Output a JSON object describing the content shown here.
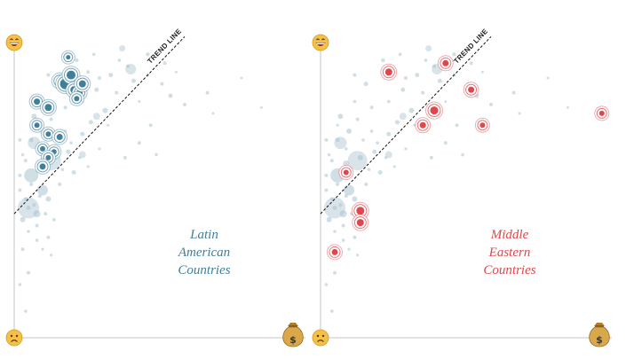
{
  "panels": [
    {
      "title_lines": [
        "Latin",
        "American",
        "Countries"
      ],
      "trend_label": "TREND LINE"
    },
    {
      "title_lines": [
        "Middle",
        "Eastern",
        "Countries"
      ],
      "trend_label": "TREND LINE"
    }
  ],
  "icons": {
    "y_top": "grinning-face-icon",
    "y_bottom": "frowning-face-icon",
    "x_right": "money-bag-icon",
    "money_symbol": "$"
  },
  "colors": {
    "latin": "#3f7f99",
    "middle_east": "#e0474c",
    "background_points": "#a9c3d1",
    "axis": "#d9d9d9",
    "trend": "#111111",
    "emoji_face": "#f5c046",
    "money_bag": "#d8a84a"
  },
  "chart_data": [
    {
      "type": "scatter",
      "title": "Latin American Countries",
      "xlabel": "",
      "ylabel": "",
      "xlim": [
        0,
        1
      ],
      "ylim": [
        0,
        1
      ],
      "trend_line": {
        "x": [
          0.0,
          0.6
        ],
        "y": [
          0.42,
          1.02
        ]
      },
      "series": [
        {
          "name": "Background",
          "points": [
            [
              0.05,
              0.44,
              2.5
            ],
            [
              0.08,
              0.42,
              4
            ],
            [
              0.1,
              0.5,
              6
            ],
            [
              0.03,
              0.4,
              3
            ],
            [
              0.12,
              0.47,
              3
            ],
            [
              0.16,
              0.52,
              2
            ],
            [
              0.21,
              0.56,
              2.5
            ],
            [
              0.09,
              0.59,
              3.5
            ],
            [
              0.14,
              0.61,
              3
            ],
            [
              0.19,
              0.63,
              2.5
            ],
            [
              0.06,
              0.67,
              2.5
            ],
            [
              0.1,
              0.7,
              3
            ],
            [
              0.02,
              0.55,
              2
            ],
            [
              0.04,
              0.6,
              2
            ],
            [
              0.08,
              0.38,
              2
            ],
            [
              0.12,
              0.34,
              2
            ],
            [
              0.03,
              0.3,
              2
            ],
            [
              0.05,
              0.22,
              2
            ],
            [
              0.02,
              0.18,
              1.8
            ],
            [
              0.04,
              0.09,
              1.8
            ],
            [
              0.06,
              0.55,
              8
            ],
            [
              0.02,
              0.67,
              2
            ],
            [
              0.07,
              0.75,
              3
            ],
            [
              0.13,
              0.74,
              2
            ],
            [
              0.18,
              0.78,
              2
            ],
            [
              0.24,
              0.69,
              2.5
            ],
            [
              0.27,
              0.73,
              2.5
            ],
            [
              0.32,
              0.77,
              3
            ],
            [
              0.36,
              0.83,
              2
            ],
            [
              0.42,
              0.87,
              2.5
            ],
            [
              0.47,
              0.89,
              2
            ],
            [
              0.53,
              0.93,
              2
            ],
            [
              0.6,
              0.79,
              2
            ],
            [
              0.68,
              0.83,
              2
            ],
            [
              0.55,
              0.82,
              2.5
            ],
            [
              0.48,
              0.72,
              2
            ],
            [
              0.44,
              0.66,
              2
            ],
            [
              0.5,
              0.62,
              1.8
            ],
            [
              0.39,
              0.61,
              2
            ],
            [
              0.29,
              0.84,
              2.5
            ],
            [
              0.16,
              0.86,
              2.5
            ],
            [
              0.12,
              0.89,
              2
            ],
            [
              0.3,
              0.88,
              2
            ],
            [
              0.34,
              0.89,
              2.5
            ],
            [
              0.26,
              0.9,
              2
            ],
            [
              0.4,
              0.92,
              2
            ],
            [
              0.47,
              0.96,
              2.2
            ],
            [
              0.52,
              0.86,
              2
            ],
            [
              0.57,
              0.9,
              1.5
            ],
            [
              0.7,
              0.76,
              1.5
            ],
            [
              0.8,
              0.88,
              1.5
            ],
            [
              0.87,
              0.78,
              1.5
            ],
            [
              0.22,
              0.94,
              2.2
            ],
            [
              0.28,
              0.96,
              1.8
            ],
            [
              0.37,
              0.94,
              1.8
            ],
            [
              0.44,
              0.8,
              1.5
            ],
            [
              0.33,
              0.72,
              1.5
            ],
            [
              0.24,
              0.8,
              1.8
            ],
            [
              0.18,
              0.7,
              1.8
            ],
            [
              0.12,
              0.8,
              1.8
            ],
            [
              0.06,
              0.52,
              2
            ],
            [
              0.09,
              0.48,
              2
            ],
            [
              0.07,
              0.45,
              2
            ],
            [
              0.11,
              0.42,
              2
            ],
            [
              0.14,
              0.4,
              1.8
            ],
            [
              0.04,
              0.47,
              2
            ],
            [
              0.02,
              0.5,
              2
            ],
            [
              0.08,
              0.33,
              1.8
            ],
            [
              0.1,
              0.3,
              1.6
            ],
            [
              0.13,
              0.28,
              1.6
            ],
            [
              0.05,
              0.36,
              1.8
            ],
            [
              0.17,
              0.57,
              1.8
            ],
            [
              0.15,
              0.67,
              1.8
            ],
            [
              0.2,
              0.66,
              1.8
            ],
            [
              0.23,
              0.61,
              1.6
            ],
            [
              0.26,
              0.58,
              1.6
            ],
            [
              0.3,
              0.64,
              1.6
            ],
            [
              0.09,
              0.64,
              1.8
            ],
            [
              0.03,
              0.62,
              1.8
            ],
            [
              0.06,
              0.72,
              1.6
            ]
          ]
        },
        {
          "name": "Background large",
          "points": [
            [
              0.05,
              0.44,
              12
            ],
            [
              0.13,
              0.6,
              11
            ],
            [
              0.41,
              0.91,
              6
            ],
            [
              0.07,
              0.66,
              7
            ],
            [
              0.29,
              0.75,
              4
            ],
            [
              0.24,
              0.62,
              4
            ],
            [
              0.38,
              0.98,
              3.5
            ]
          ]
        },
        {
          "name": "Highlighted",
          "points": [
            [
              0.08,
              0.72,
              3
            ],
            [
              0.12,
              0.69,
              3
            ],
            [
              0.1,
              0.64,
              3
            ],
            [
              0.14,
              0.63,
              3
            ],
            [
              0.12,
              0.61,
              3
            ],
            [
              0.1,
              0.58,
              3.5
            ],
            [
              0.16,
              0.68,
              3.5
            ],
            [
              0.08,
              0.8,
              3.5
            ],
            [
              0.12,
              0.78,
              4
            ],
            [
              0.16,
              0.87,
              4
            ],
            [
              0.18,
              0.86,
              6
            ],
            [
              0.2,
              0.89,
              5
            ],
            [
              0.21,
              0.84,
              4
            ],
            [
              0.23,
              0.83,
              3.5
            ],
            [
              0.22,
              0.81,
              3
            ],
            [
              0.19,
              0.95,
              2.5
            ],
            [
              0.24,
              0.86,
              4
            ]
          ]
        }
      ]
    },
    {
      "type": "scatter",
      "title": "Middle Eastern Countries",
      "xlabel": "",
      "ylabel": "",
      "xlim": [
        0,
        1
      ],
      "ylim": [
        0,
        1
      ],
      "trend_line": {
        "x": [
          0.0,
          0.6
        ],
        "y": [
          0.42,
          1.02
        ]
      },
      "series": [
        {
          "name": "Background",
          "points": [
            [
              0.05,
              0.44,
              2.5
            ],
            [
              0.08,
              0.42,
              4
            ],
            [
              0.1,
              0.5,
              6
            ],
            [
              0.03,
              0.4,
              3
            ],
            [
              0.12,
              0.47,
              3
            ],
            [
              0.16,
              0.52,
              2
            ],
            [
              0.21,
              0.56,
              2.5
            ],
            [
              0.09,
              0.59,
              3.5
            ],
            [
              0.14,
              0.61,
              3
            ],
            [
              0.19,
              0.63,
              2.5
            ],
            [
              0.06,
              0.67,
              2.5
            ],
            [
              0.1,
              0.7,
              3
            ],
            [
              0.02,
              0.55,
              2
            ],
            [
              0.04,
              0.6,
              2
            ],
            [
              0.08,
              0.38,
              2
            ],
            [
              0.12,
              0.34,
              2
            ],
            [
              0.03,
              0.3,
              2
            ],
            [
              0.05,
              0.22,
              2
            ],
            [
              0.02,
              0.18,
              1.8
            ],
            [
              0.04,
              0.09,
              1.8
            ],
            [
              0.06,
              0.55,
              8
            ],
            [
              0.02,
              0.67,
              2
            ],
            [
              0.07,
              0.75,
              3
            ],
            [
              0.13,
              0.74,
              2
            ],
            [
              0.18,
              0.78,
              2
            ],
            [
              0.24,
              0.69,
              2.5
            ],
            [
              0.27,
              0.73,
              2.5
            ],
            [
              0.32,
              0.77,
              3
            ],
            [
              0.36,
              0.83,
              2
            ],
            [
              0.42,
              0.87,
              2.5
            ],
            [
              0.47,
              0.89,
              2
            ],
            [
              0.53,
              0.93,
              2
            ],
            [
              0.6,
              0.79,
              2
            ],
            [
              0.68,
              0.83,
              2
            ],
            [
              0.55,
              0.82,
              2.5
            ],
            [
              0.48,
              0.72,
              2
            ],
            [
              0.44,
              0.66,
              2
            ],
            [
              0.5,
              0.62,
              1.8
            ],
            [
              0.39,
              0.61,
              2
            ],
            [
              0.29,
              0.84,
              2.5
            ],
            [
              0.16,
              0.86,
              2.5
            ],
            [
              0.12,
              0.89,
              2
            ],
            [
              0.3,
              0.88,
              2
            ],
            [
              0.34,
              0.89,
              2.5
            ],
            [
              0.26,
              0.9,
              2
            ],
            [
              0.4,
              0.92,
              2
            ],
            [
              0.47,
              0.96,
              2.2
            ],
            [
              0.52,
              0.86,
              2
            ],
            [
              0.57,
              0.9,
              1.5
            ],
            [
              0.7,
              0.76,
              1.5
            ],
            [
              0.8,
              0.88,
              1.5
            ],
            [
              0.87,
              0.78,
              1.5
            ],
            [
              0.22,
              0.94,
              2.2
            ],
            [
              0.28,
              0.96,
              1.8
            ],
            [
              0.37,
              0.94,
              1.8
            ],
            [
              0.44,
              0.8,
              1.5
            ],
            [
              0.33,
              0.72,
              1.5
            ],
            [
              0.24,
              0.8,
              1.8
            ],
            [
              0.18,
              0.7,
              1.8
            ],
            [
              0.12,
              0.8,
              1.8
            ],
            [
              0.06,
              0.52,
              2
            ],
            [
              0.09,
              0.48,
              2
            ],
            [
              0.07,
              0.45,
              2
            ],
            [
              0.11,
              0.42,
              2
            ],
            [
              0.14,
              0.4,
              1.8
            ],
            [
              0.04,
              0.47,
              2
            ],
            [
              0.02,
              0.5,
              2
            ],
            [
              0.08,
              0.33,
              1.8
            ],
            [
              0.1,
              0.3,
              1.6
            ],
            [
              0.13,
              0.28,
              1.6
            ],
            [
              0.05,
              0.36,
              1.8
            ],
            [
              0.17,
              0.57,
              1.8
            ],
            [
              0.15,
              0.67,
              1.8
            ],
            [
              0.2,
              0.66,
              1.8
            ],
            [
              0.23,
              0.61,
              1.6
            ],
            [
              0.26,
              0.58,
              1.6
            ],
            [
              0.3,
              0.64,
              1.6
            ],
            [
              0.09,
              0.64,
              1.8
            ],
            [
              0.03,
              0.62,
              1.8
            ],
            [
              0.06,
              0.72,
              1.6
            ]
          ]
        },
        {
          "name": "Background large",
          "points": [
            [
              0.05,
              0.44,
              12
            ],
            [
              0.13,
              0.6,
              11
            ],
            [
              0.41,
              0.91,
              6
            ],
            [
              0.07,
              0.66,
              7
            ],
            [
              0.29,
              0.75,
              4
            ],
            [
              0.24,
              0.62,
              4
            ],
            [
              0.38,
              0.98,
              3.5
            ]
          ]
        },
        {
          "name": "Highlighted",
          "points": [
            [
              0.24,
              0.9,
              4
            ],
            [
              0.44,
              0.93,
              3.5
            ],
            [
              0.53,
              0.84,
              3.5
            ],
            [
              0.4,
              0.77,
              4.5
            ],
            [
              0.36,
              0.72,
              3.5
            ],
            [
              0.57,
              0.72,
              3
            ],
            [
              0.99,
              0.76,
              3
            ],
            [
              0.09,
              0.56,
              3
            ],
            [
              0.14,
              0.43,
              4.5
            ],
            [
              0.14,
              0.39,
              4
            ],
            [
              0.05,
              0.29,
              3.5
            ]
          ]
        }
      ]
    }
  ]
}
